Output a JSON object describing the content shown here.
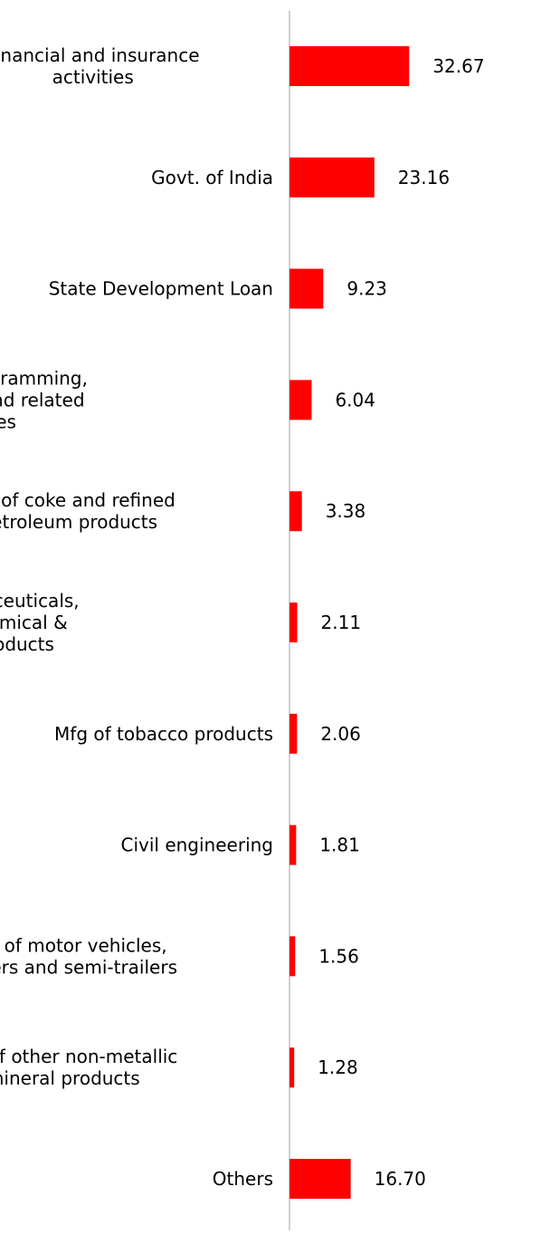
{
  "chart_data": {
    "type": "bar",
    "orientation": "horizontal",
    "categories": [
      [
        "Financial and insurance",
        "activities"
      ],
      [
        "Govt. of India"
      ],
      [
        "State Development Loan"
      ],
      [
        "Computer programming,",
        "consultancy and related",
        "activities"
      ],
      [
        "Mfg of coke and refined",
        "petroleum products"
      ],
      [
        "Mfg of pharmaceuticals,",
        "medicinal chemical &",
        "botanical products"
      ],
      [
        "Mfg of tobacco products"
      ],
      [
        "Civil engineering"
      ],
      [
        "Mfg of motor vehicles,",
        "trailers and semi-trailers"
      ],
      [
        "Mfg of other non-metallic",
        "mineral products"
      ],
      [
        "Others"
      ]
    ],
    "values": [
      32.67,
      23.16,
      9.23,
      6.04,
      3.38,
      2.11,
      2.06,
      1.81,
      1.56,
      1.28,
      16.7
    ],
    "value_labels": [
      "32.67",
      "23.16",
      "9.23",
      "6.04",
      "3.38",
      "2.11",
      "2.06",
      "1.81",
      "1.56",
      "1.28",
      "16.70"
    ],
    "title": "",
    "xlabel": "",
    "ylabel": "",
    "grid": false,
    "legend": "none",
    "colors": {
      "bar": "#ff0000",
      "axis": "#d0d0d0",
      "text": "#000000"
    }
  }
}
